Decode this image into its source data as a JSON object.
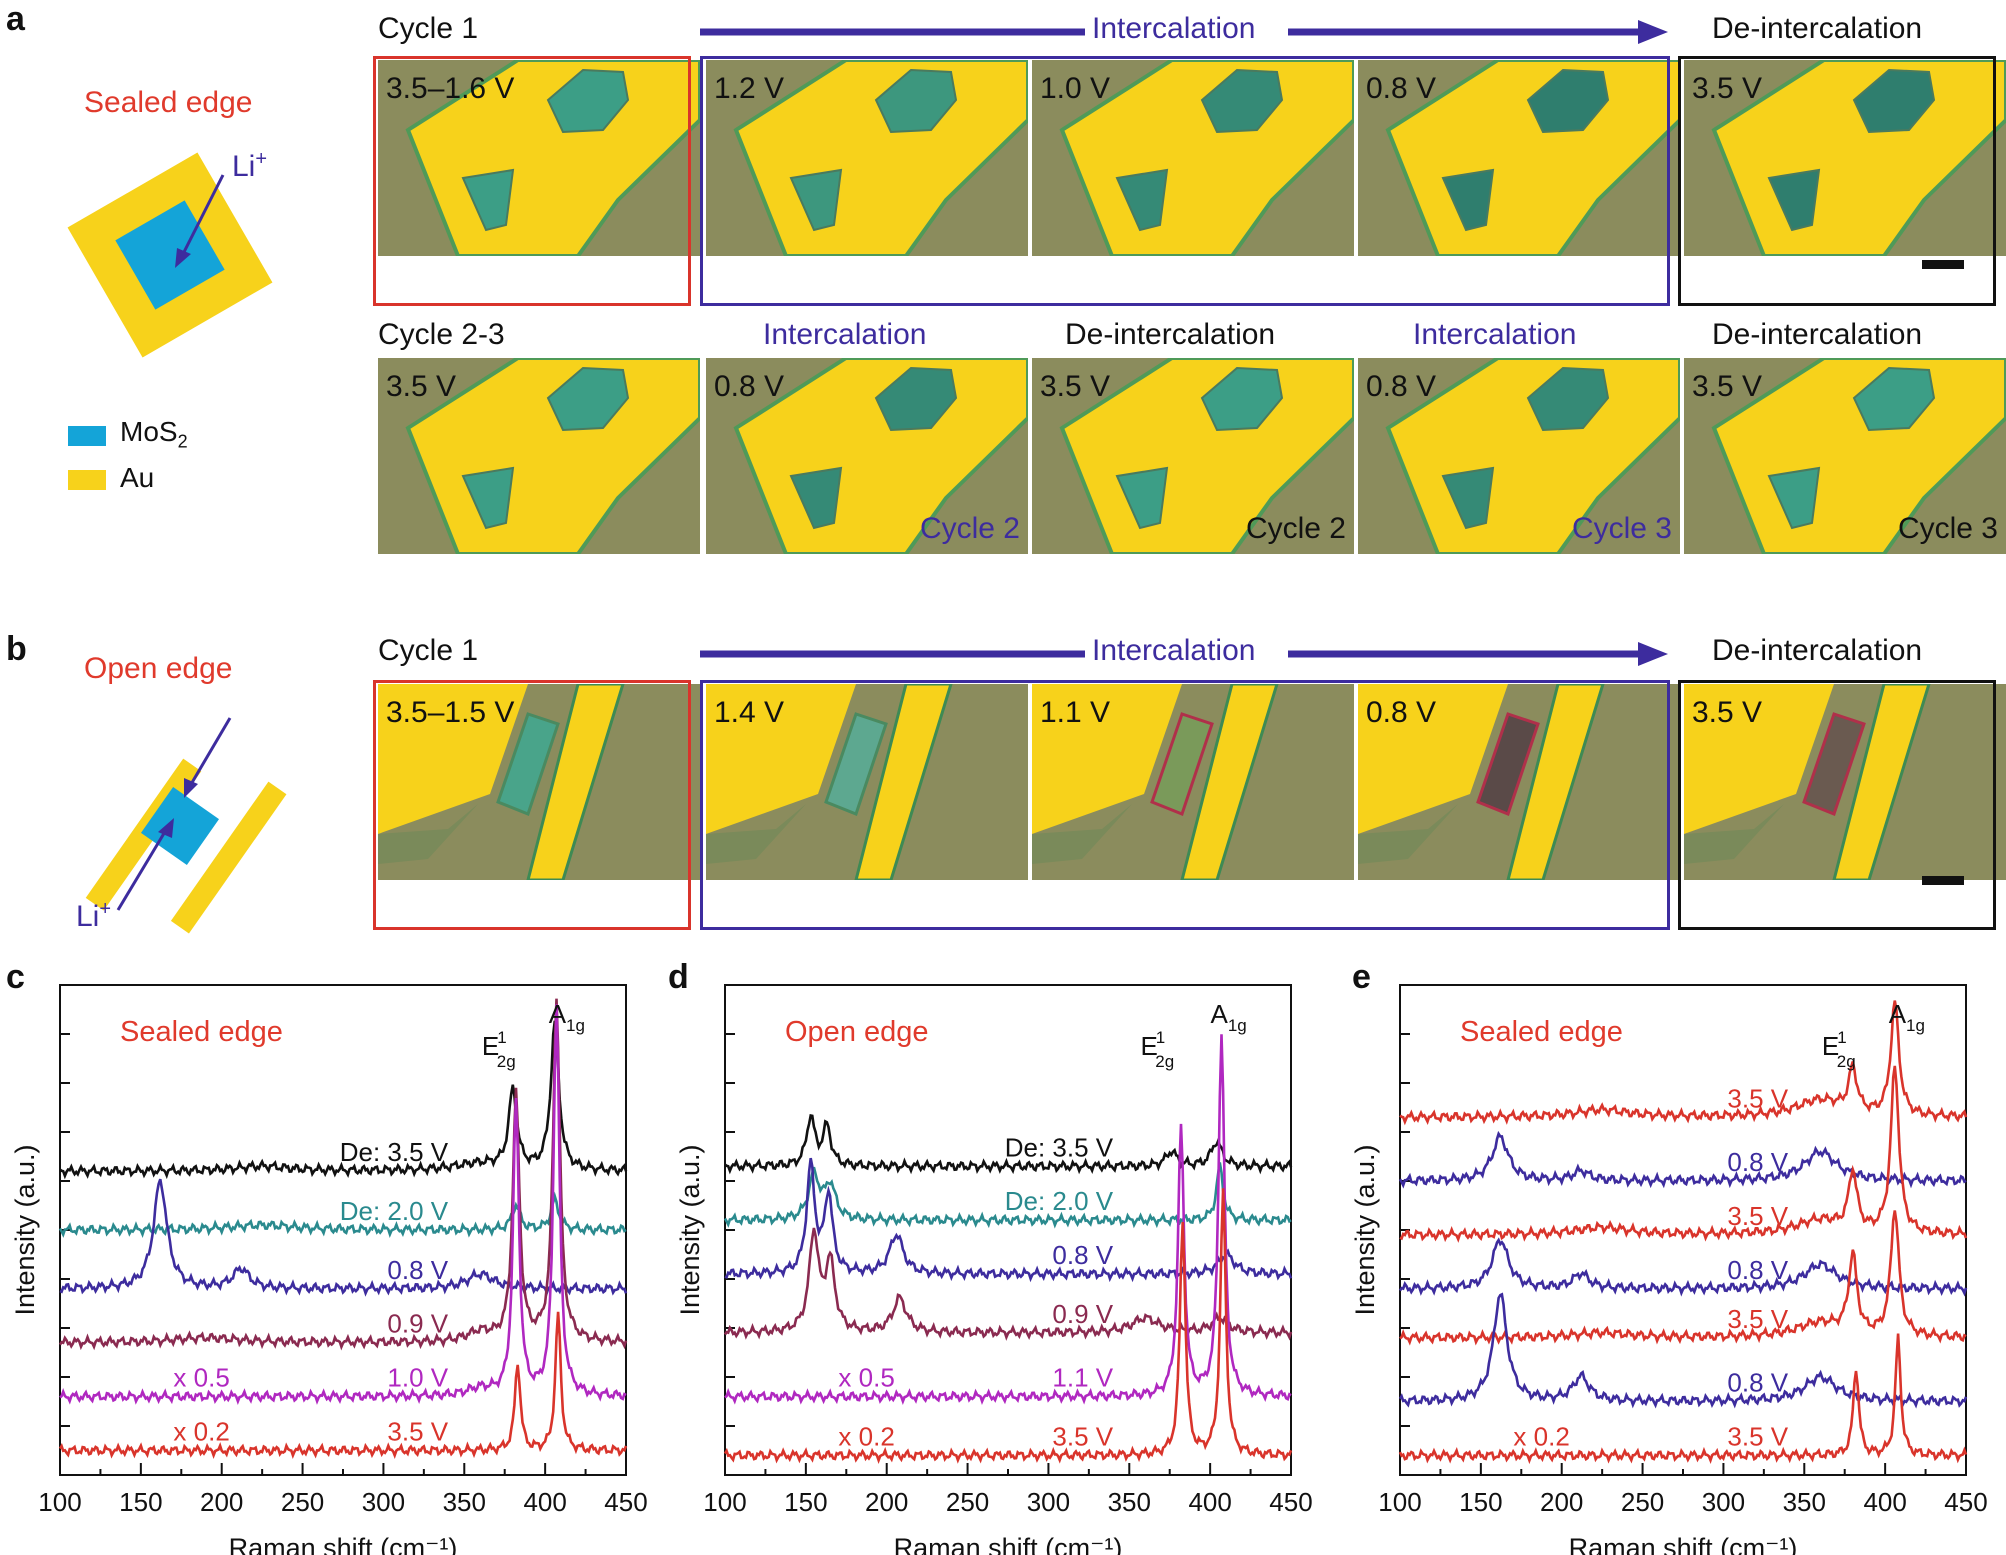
{
  "colors": {
    "red": "#d9342b",
    "blue": "#3d2c9e",
    "teal": "#2a8a8e",
    "maroon": "#8a2a50",
    "magenta": "#b028c0",
    "black": "#111111",
    "gold": "#f7d21b",
    "mos2": "#14a4d8",
    "substrate": "#8b8c5d"
  },
  "panel_a": {
    "label": "a",
    "edge_title": "Sealed edge",
    "li_label": "Li",
    "li_sup": "+",
    "legend": [
      {
        "label": "MoS",
        "sub": "2",
        "color": "#14a4d8"
      },
      {
        "label": "Au",
        "sub": "",
        "color": "#f7d21b"
      }
    ],
    "row1": {
      "cycle": "Cycle 1",
      "arrow_label": "Intercalation",
      "right_label": "De-intercalation",
      "images": [
        {
          "voltage": "3.5–1.6 V"
        },
        {
          "voltage": "1.2 V"
        },
        {
          "voltage": "1.0 V"
        },
        {
          "voltage": "0.8 V"
        },
        {
          "voltage": "3.5 V"
        }
      ]
    },
    "row2": {
      "cycle": "Cycle 2-3",
      "stages": [
        "Intercalation",
        "De-intercalation",
        "Intercalation",
        "De-intercalation"
      ],
      "images": [
        {
          "voltage": "3.5 V",
          "cycle": ""
        },
        {
          "voltage": "0.8 V",
          "cycle": "Cycle 2"
        },
        {
          "voltage": "3.5 V",
          "cycle": "Cycle 2"
        },
        {
          "voltage": "0.8 V",
          "cycle": "Cycle 3"
        },
        {
          "voltage": "3.5 V",
          "cycle": "Cycle 3"
        }
      ]
    }
  },
  "panel_b": {
    "label": "b",
    "edge_title": "Open edge",
    "li_label": "Li",
    "li_sup": "+",
    "cycle": "Cycle 1",
    "arrow_label": "Intercalation",
    "right_label": "De-intercalation",
    "images": [
      {
        "voltage": "3.5–1.5 V"
      },
      {
        "voltage": "1.4 V"
      },
      {
        "voltage": "1.1 V"
      },
      {
        "voltage": "0.8 V"
      },
      {
        "voltage": "3.5 V"
      }
    ]
  },
  "chart_data": [
    {
      "type": "line",
      "panel": "c",
      "title": "Sealed edge",
      "xlabel": "Raman shift (cm⁻¹)",
      "ylabel": "Intensity (a.u.)",
      "xlim": [
        100,
        450
      ],
      "ylim": [
        0,
        10
      ],
      "xticks": [
        100,
        150,
        200,
        250,
        300,
        350,
        400,
        450
      ],
      "peak_labels": [
        {
          "text": "E",
          "sup": "1",
          "sub": "2g",
          "x": 380
        },
        {
          "text": "A",
          "sub": "1g",
          "x": 406
        }
      ],
      "series": [
        {
          "name": "De: 3.5 V",
          "scale": "",
          "baseline": 6.2,
          "color": "#111111",
          "peaks": [
            [
              380,
              1.6,
              3
            ],
            [
              406,
              3.0,
              3
            ],
            [
              225,
              0.1,
              20
            ],
            [
              360,
              0.15,
              20
            ]
          ]
        },
        {
          "name": "De: 2.0 V",
          "scale": "",
          "baseline": 5.0,
          "color": "#2a8a8e",
          "peaks": [
            [
              382,
              0.5,
              3
            ],
            [
              406,
              0.6,
              3
            ],
            [
              225,
              0.1,
              25
            ]
          ]
        },
        {
          "name": "0.8 V",
          "scale": "",
          "baseline": 3.8,
          "color": "#3d2c9e",
          "peaks": [
            [
              162,
              2.2,
              5
            ],
            [
              212,
              0.4,
              6
            ],
            [
              360,
              0.3,
              10
            ]
          ]
        },
        {
          "name": "0.9 V",
          "scale": "",
          "baseline": 2.7,
          "color": "#8a2a50",
          "peaks": [
            [
              382,
              5.0,
              2.5
            ],
            [
              407,
              7.0,
              2.5
            ],
            [
              190,
              0.1,
              25
            ],
            [
              360,
              0.2,
              10
            ]
          ]
        },
        {
          "name": "1.0 V",
          "scale": "x 0.5",
          "baseline": 1.6,
          "color": "#b028c0",
          "peaks": [
            [
              382,
              6.0,
              2.2
            ],
            [
              407,
              8.0,
              2.2
            ],
            [
              360,
              0.15,
              10
            ]
          ]
        },
        {
          "name": "3.5 V",
          "scale": "x 0.2",
          "baseline": 0.5,
          "color": "#d9342b",
          "peaks": [
            [
              383,
              1.8,
              2
            ],
            [
              408,
              2.8,
              2
            ]
          ]
        }
      ]
    },
    {
      "type": "line",
      "panel": "d",
      "title": "Open edge",
      "xlabel": "Raman shift (cm⁻¹)",
      "ylabel": "Intensity (a.u.)",
      "xlim": [
        100,
        450
      ],
      "ylim": [
        0,
        10
      ],
      "xticks": [
        100,
        150,
        200,
        250,
        300,
        350,
        400,
        450
      ],
      "peak_labels": [
        {
          "text": "E",
          "sup": "1",
          "sub": "2g",
          "x": 376
        },
        {
          "text": "A",
          "sub": "1g",
          "x": 404
        }
      ],
      "series": [
        {
          "name": "De: 3.5 V",
          "scale": "",
          "baseline": 6.3,
          "color": "#111111",
          "peaks": [
            [
              153,
              1.0,
              3
            ],
            [
              163,
              0.8,
              3
            ],
            [
              376,
              0.3,
              4
            ],
            [
              404,
              0.5,
              4
            ]
          ]
        },
        {
          "name": "De: 2.0 V",
          "scale": "",
          "baseline": 5.2,
          "color": "#2a8a8e",
          "peaks": [
            [
              155,
              0.9,
              4
            ],
            [
              165,
              0.7,
              4
            ],
            [
              406,
              1.1,
              2.5
            ]
          ]
        },
        {
          "name": "0.8 V",
          "scale": "",
          "baseline": 4.1,
          "color": "#3d2c9e",
          "peaks": [
            [
              153,
              2.2,
              3
            ],
            [
              164,
              1.6,
              3
            ],
            [
              206,
              0.8,
              5
            ],
            [
              410,
              0.4,
              6
            ]
          ]
        },
        {
          "name": "0.9 V",
          "scale": "",
          "baseline": 2.9,
          "color": "#8a2a50",
          "peaks": [
            [
              155,
              2.0,
              3.5
            ],
            [
              165,
              1.4,
              3.5
            ],
            [
              208,
              0.7,
              5
            ],
            [
              360,
              0.3,
              10
            ],
            [
              406,
              0.3,
              6
            ]
          ]
        },
        {
          "name": "1.1 V",
          "scale": "x 0.5",
          "baseline": 1.6,
          "color": "#b028c0",
          "peaks": [
            [
              382,
              5.5,
              2.2
            ],
            [
              407,
              7.4,
              2.2
            ]
          ]
        },
        {
          "name": "3.5 V",
          "scale": "x 0.2",
          "baseline": 0.4,
          "color": "#d9342b",
          "peaks": [
            [
              383,
              4.8,
              2
            ],
            [
              408,
              5.4,
              2
            ]
          ]
        }
      ]
    },
    {
      "type": "line",
      "panel": "e",
      "title": "Sealed edge",
      "xlabel": "Raman shift (cm⁻¹)",
      "ylabel": "Intensity (a.u.)",
      "xlim": [
        100,
        450
      ],
      "ylim": [
        0,
        10
      ],
      "xticks": [
        100,
        150,
        200,
        250,
        300,
        350,
        400,
        450
      ],
      "peak_labels": [
        {
          "text": "E",
          "sup": "1",
          "sub": "2g",
          "x": 380
        },
        {
          "text": "A",
          "sub": "1g",
          "x": 406
        }
      ],
      "series": [
        {
          "name": "3.5 V",
          "scale": "",
          "baseline": 7.3,
          "color": "#d9342b",
          "peaks": [
            [
              380,
              0.9,
              3
            ],
            [
              406,
              2.3,
              3
            ],
            [
              225,
              0.15,
              20
            ],
            [
              360,
              0.35,
              18
            ]
          ]
        },
        {
          "name": "0.8 V",
          "scale": "",
          "baseline": 6.0,
          "color": "#3d2c9e",
          "peaks": [
            [
              162,
              0.9,
              6
            ],
            [
              212,
              0.2,
              6
            ],
            [
              360,
              0.6,
              12
            ]
          ]
        },
        {
          "name": "3.5 V",
          "scale": "",
          "baseline": 4.9,
          "color": "#d9342b",
          "peaks": [
            [
              380,
              1.2,
              3
            ],
            [
              406,
              3.4,
              3
            ],
            [
              225,
              0.15,
              20
            ],
            [
              360,
              0.3,
              18
            ]
          ]
        },
        {
          "name": "0.8 V",
          "scale": "",
          "baseline": 3.8,
          "color": "#3d2c9e",
          "peaks": [
            [
              162,
              1.0,
              6
            ],
            [
              212,
              0.3,
              6
            ],
            [
              360,
              0.5,
              12
            ]
          ]
        },
        {
          "name": "3.5 V",
          "scale": "",
          "baseline": 2.8,
          "color": "#d9342b",
          "peaks": [
            [
              380,
              1.6,
              3
            ],
            [
              406,
              2.6,
              3
            ],
            [
              225,
              0.1,
              20
            ],
            [
              360,
              0.3,
              18
            ]
          ]
        },
        {
          "name": "0.8 V",
          "scale": "",
          "baseline": 1.5,
          "color": "#3d2c9e",
          "peaks": [
            [
              162,
              2.2,
              5
            ],
            [
              212,
              0.5,
              6
            ],
            [
              360,
              0.5,
              12
            ]
          ]
        },
        {
          "name": "3.5 V",
          "scale": "x 0.2",
          "baseline": 0.4,
          "color": "#d9342b",
          "peaks": [
            [
              382,
              1.8,
              2
            ],
            [
              408,
              2.4,
              2
            ]
          ]
        }
      ]
    }
  ]
}
